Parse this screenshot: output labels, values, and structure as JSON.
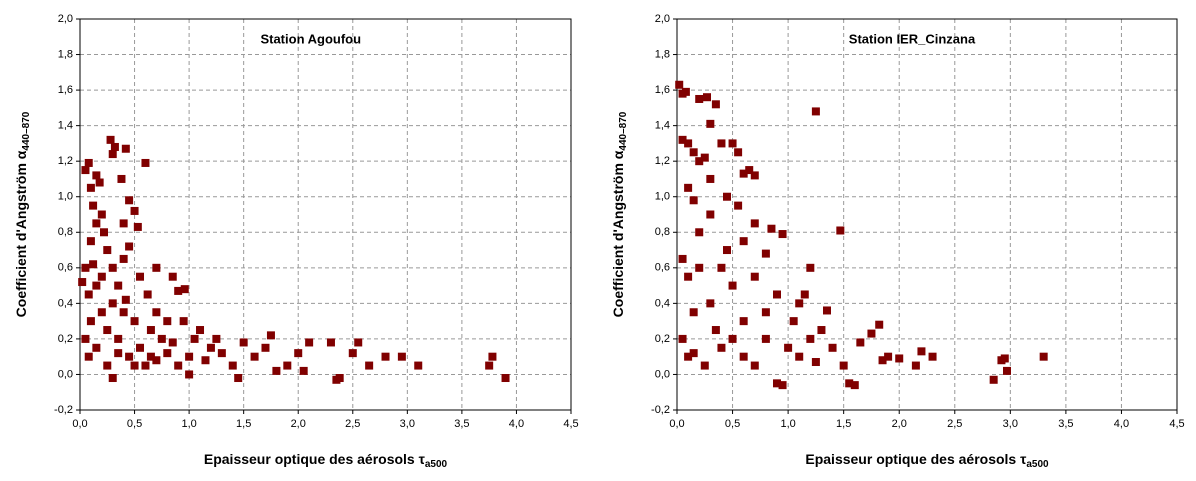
{
  "chart_data": [
    {
      "type": "scatter",
      "title": "Station Agoufou",
      "xlabel": {
        "text": "Epaisseur optique des aérosols τ",
        "sub": "a500"
      },
      "ylabel": {
        "text": "Coefficient d'Angström α",
        "sub": "440–870"
      },
      "color": "#800000",
      "grid": true,
      "xlim": [
        0,
        4.5
      ],
      "ylim": [
        -0.2,
        2.0
      ],
      "xticks": [
        {
          "value": 0,
          "label": "0,0"
        },
        {
          "value": 0.5,
          "label": "0,5"
        },
        {
          "value": 1,
          "label": "1,0"
        },
        {
          "value": 1.5,
          "label": "1,5"
        },
        {
          "value": 2,
          "label": "2,0"
        },
        {
          "value": 2.5,
          "label": "2,5"
        },
        {
          "value": 3,
          "label": "3,0"
        },
        {
          "value": 3.5,
          "label": "3,5"
        },
        {
          "value": 4,
          "label": "4,0"
        },
        {
          "value": 4.5,
          "label": "4,5"
        }
      ],
      "yticks": [
        {
          "value": -0.2,
          "label": "-0,2"
        },
        {
          "value": 0,
          "label": "0,0"
        },
        {
          "value": 0.2,
          "label": "0,2"
        },
        {
          "value": 0.4,
          "label": "0,4"
        },
        {
          "value": 0.6,
          "label": "0,6"
        },
        {
          "value": 0.8,
          "label": "0,8"
        },
        {
          "value": 1,
          "label": "1,0"
        },
        {
          "value": 1.2,
          "label": "1,2"
        },
        {
          "value": 1.4,
          "label": "1,4"
        },
        {
          "value": 1.6,
          "label": "1,6"
        },
        {
          "value": 1.8,
          "label": "1,8"
        },
        {
          "value": 2,
          "label": "2,0"
        }
      ],
      "x": [
        0.05,
        0.08,
        0.1,
        0.12,
        0.15,
        0.18,
        0.2,
        0.22,
        0.28,
        0.3,
        0.32,
        0.42,
        0.6,
        0.38,
        0.45,
        0.5,
        0.53,
        0.4,
        0.25,
        0.1,
        0.05,
        0.02,
        0.08,
        0.12,
        0.15,
        0.2,
        0.3,
        0.35,
        0.4,
        0.45,
        0.55,
        0.7,
        0.62,
        0.7,
        0.85,
        0.9,
        0.96,
        0.8,
        0.75,
        0.65,
        0.5,
        0.4,
        0.3,
        0.2,
        0.1,
        0.05,
        0.08,
        0.15,
        0.25,
        0.3,
        0.35,
        0.45,
        0.55,
        0.6,
        0.7,
        0.8,
        0.9,
        1.0,
        1.05,
        1.1,
        1.15,
        1.2,
        1.3,
        1.4,
        1.45,
        1.5,
        1.6,
        1.7,
        1.75,
        1.8,
        1.9,
        2.0,
        2.1,
        2.05,
        2.3,
        2.35,
        2.38,
        2.5,
        2.55,
        2.65,
        2.8,
        2.95,
        3.1,
        3.75,
        3.78,
        3.9,
        0.35,
        0.5,
        0.65,
        0.85,
        1.0,
        0.95,
        1.25,
        0.15,
        0.25,
        0.42
      ],
      "values": [
        1.15,
        1.19,
        1.05,
        0.95,
        1.12,
        1.08,
        0.9,
        0.8,
        1.32,
        1.24,
        1.28,
        1.27,
        1.19,
        1.1,
        0.98,
        0.92,
        0.83,
        0.85,
        0.7,
        0.75,
        0.6,
        0.52,
        0.45,
        0.62,
        0.5,
        0.55,
        0.6,
        0.5,
        0.65,
        0.72,
        0.55,
        0.6,
        0.45,
        0.35,
        0.55,
        0.47,
        0.48,
        0.3,
        0.2,
        0.25,
        0.3,
        0.35,
        0.4,
        0.35,
        0.3,
        0.2,
        0.1,
        0.15,
        0.05,
        -0.02,
        0.12,
        0.1,
        0.15,
        0.05,
        0.08,
        0.12,
        0.05,
        0.1,
        0.2,
        0.25,
        0.08,
        0.15,
        0.12,
        0.05,
        -0.02,
        0.18,
        0.1,
        0.15,
        0.22,
        0.02,
        0.05,
        0.12,
        0.18,
        0.02,
        0.18,
        -0.03,
        -0.02,
        0.12,
        0.18,
        0.05,
        0.1,
        0.1,
        0.05,
        0.05,
        0.1,
        -0.02,
        0.2,
        0.05,
        0.1,
        0.18,
        0.0,
        0.3,
        0.2,
        0.85,
        0.25,
        0.42
      ]
    },
    {
      "type": "scatter",
      "title": "Station IER_Cinzana",
      "xlabel": {
        "text": "Epaisseur optique des aérosols τ",
        "sub": "a500"
      },
      "ylabel": {
        "text": "Coefficient d'Angström α",
        "sub": "440–870"
      },
      "color": "#800000",
      "grid": true,
      "xlim": [
        0,
        4.5
      ],
      "ylim": [
        -0.2,
        2.0
      ],
      "xticks": [
        {
          "value": 0,
          "label": "0,0"
        },
        {
          "value": 0.5,
          "label": "0,5"
        },
        {
          "value": 1,
          "label": "1,0"
        },
        {
          "value": 1.5,
          "label": "1,5"
        },
        {
          "value": 2,
          "label": "2,0"
        },
        {
          "value": 2.5,
          "label": "2,5"
        },
        {
          "value": 3,
          "label": "3,0"
        },
        {
          "value": 3.5,
          "label": "3,5"
        },
        {
          "value": 4,
          "label": "4,0"
        },
        {
          "value": 4.5,
          "label": "4,5"
        }
      ],
      "yticks": [
        {
          "value": -0.2,
          "label": "-0,2"
        },
        {
          "value": 0,
          "label": "0,0"
        },
        {
          "value": 0.2,
          "label": "0,2"
        },
        {
          "value": 0.4,
          "label": "0,4"
        },
        {
          "value": 0.6,
          "label": "0,6"
        },
        {
          "value": 0.8,
          "label": "0,8"
        },
        {
          "value": 1,
          "label": "1,0"
        },
        {
          "value": 1.2,
          "label": "1,2"
        },
        {
          "value": 1.4,
          "label": "1,4"
        },
        {
          "value": 1.6,
          "label": "1,6"
        },
        {
          "value": 1.8,
          "label": "1,8"
        },
        {
          "value": 2,
          "label": "2,0"
        }
      ],
      "x": [
        0.02,
        0.05,
        0.08,
        0.2,
        0.27,
        0.35,
        0.3,
        1.25,
        0.05,
        0.1,
        0.15,
        0.2,
        0.25,
        0.4,
        0.5,
        0.55,
        0.6,
        0.65,
        0.7,
        0.3,
        0.1,
        0.15,
        0.45,
        0.55,
        0.7,
        0.85,
        0.95,
        1.47,
        0.6,
        0.8,
        1.2,
        0.3,
        0.2,
        0.05,
        0.1,
        0.4,
        0.5,
        0.7,
        0.9,
        1.1,
        1.15,
        0.8,
        0.6,
        0.3,
        0.15,
        0.05,
        0.1,
        0.25,
        0.4,
        0.6,
        0.7,
        0.9,
        0.95,
        1.0,
        1.1,
        1.2,
        1.3,
        1.35,
        1.4,
        1.5,
        1.55,
        1.6,
        1.65,
        1.75,
        1.82,
        1.85,
        1.9,
        2.0,
        2.15,
        2.2,
        2.3,
        2.85,
        2.92,
        2.95,
        2.97,
        3.3,
        1.25,
        0.5,
        0.2,
        0.35,
        0.8,
        1.05,
        0.45,
        0.15
      ],
      "values": [
        1.63,
        1.58,
        1.59,
        1.55,
        1.56,
        1.52,
        1.41,
        1.48,
        1.32,
        1.3,
        1.25,
        1.2,
        1.22,
        1.3,
        1.3,
        1.25,
        1.13,
        1.15,
        1.12,
        1.1,
        1.05,
        0.98,
        1.0,
        0.95,
        0.85,
        0.82,
        0.79,
        0.81,
        0.75,
        0.68,
        0.6,
        0.9,
        0.8,
        0.65,
        0.55,
        0.6,
        0.5,
        0.55,
        0.45,
        0.4,
        0.45,
        0.35,
        0.3,
        0.4,
        0.35,
        0.2,
        0.1,
        0.05,
        0.15,
        0.1,
        0.05,
        -0.05,
        -0.06,
        0.15,
        0.1,
        0.2,
        0.25,
        0.36,
        0.15,
        0.05,
        -0.05,
        -0.06,
        0.18,
        0.23,
        0.28,
        0.08,
        0.1,
        0.09,
        0.05,
        0.13,
        0.1,
        -0.03,
        0.08,
        0.09,
        0.02,
        0.1,
        0.07,
        0.2,
        0.6,
        0.25,
        0.2,
        0.3,
        0.7,
        0.12
      ]
    }
  ]
}
